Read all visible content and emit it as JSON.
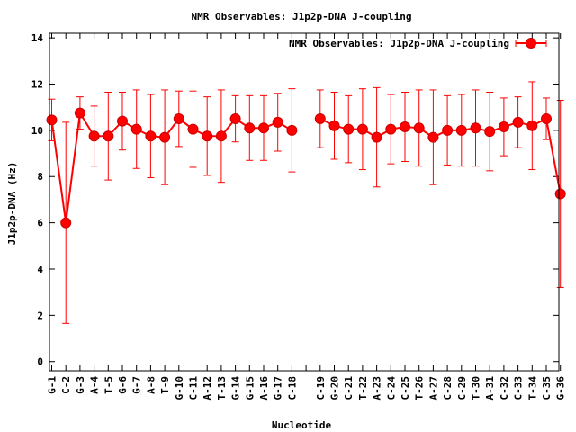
{
  "chart_data": {
    "type": "line",
    "title": "NMR Observables: J1p2p-DNA J-coupling",
    "xlabel": "Nucleotide",
    "ylabel": "J1p2p-DNA (Hz)",
    "ylim": [
      -0.4,
      14.2
    ],
    "yticks": [
      0,
      2,
      4,
      6,
      8,
      10,
      12,
      14
    ],
    "legend": {
      "label": "NMR Observables: J1p2p-DNA J-coupling",
      "position": "top-right"
    },
    "color": "#ff0000",
    "grid": false,
    "categories": [
      "G-1",
      "C-2",
      "G-3",
      "A-4",
      "T-5",
      "G-6",
      "G-7",
      "A-8",
      "T-9",
      "G-10",
      "C-11",
      "A-12",
      "T-13",
      "G-14",
      "G-15",
      "A-16",
      "G-17",
      "C-18",
      "",
      "C-19",
      "G-20",
      "C-21",
      "T-22",
      "A-23",
      "C-24",
      "C-25",
      "T-26",
      "A-27",
      "C-28",
      "C-29",
      "T-30",
      "A-31",
      "C-32",
      "C-33",
      "T-34",
      "C-35",
      "G-36"
    ],
    "series": [
      {
        "name": "NMR Observables: J1p2p-DNA J-coupling",
        "values": [
          10.45,
          6.0,
          10.75,
          9.75,
          9.75,
          10.4,
          10.05,
          9.75,
          9.7,
          10.5,
          10.05,
          9.75,
          9.75,
          10.5,
          10.1,
          10.1,
          10.35,
          10.0,
          null,
          10.5,
          10.2,
          10.05,
          10.05,
          9.7,
          10.05,
          10.15,
          10.1,
          9.7,
          10.0,
          10.0,
          10.1,
          9.95,
          10.15,
          10.35,
          10.2,
          10.5,
          7.25
        ],
        "errors": [
          0.9,
          4.35,
          0.7,
          1.3,
          1.9,
          1.25,
          1.7,
          1.8,
          2.05,
          1.2,
          1.65,
          1.7,
          2.0,
          1.0,
          1.4,
          1.4,
          1.25,
          1.8,
          null,
          1.25,
          1.45,
          1.45,
          1.75,
          2.15,
          1.5,
          1.5,
          1.65,
          2.05,
          1.5,
          1.55,
          1.65,
          1.7,
          1.25,
          1.1,
          1.9,
          0.9,
          4.05
        ]
      }
    ]
  }
}
